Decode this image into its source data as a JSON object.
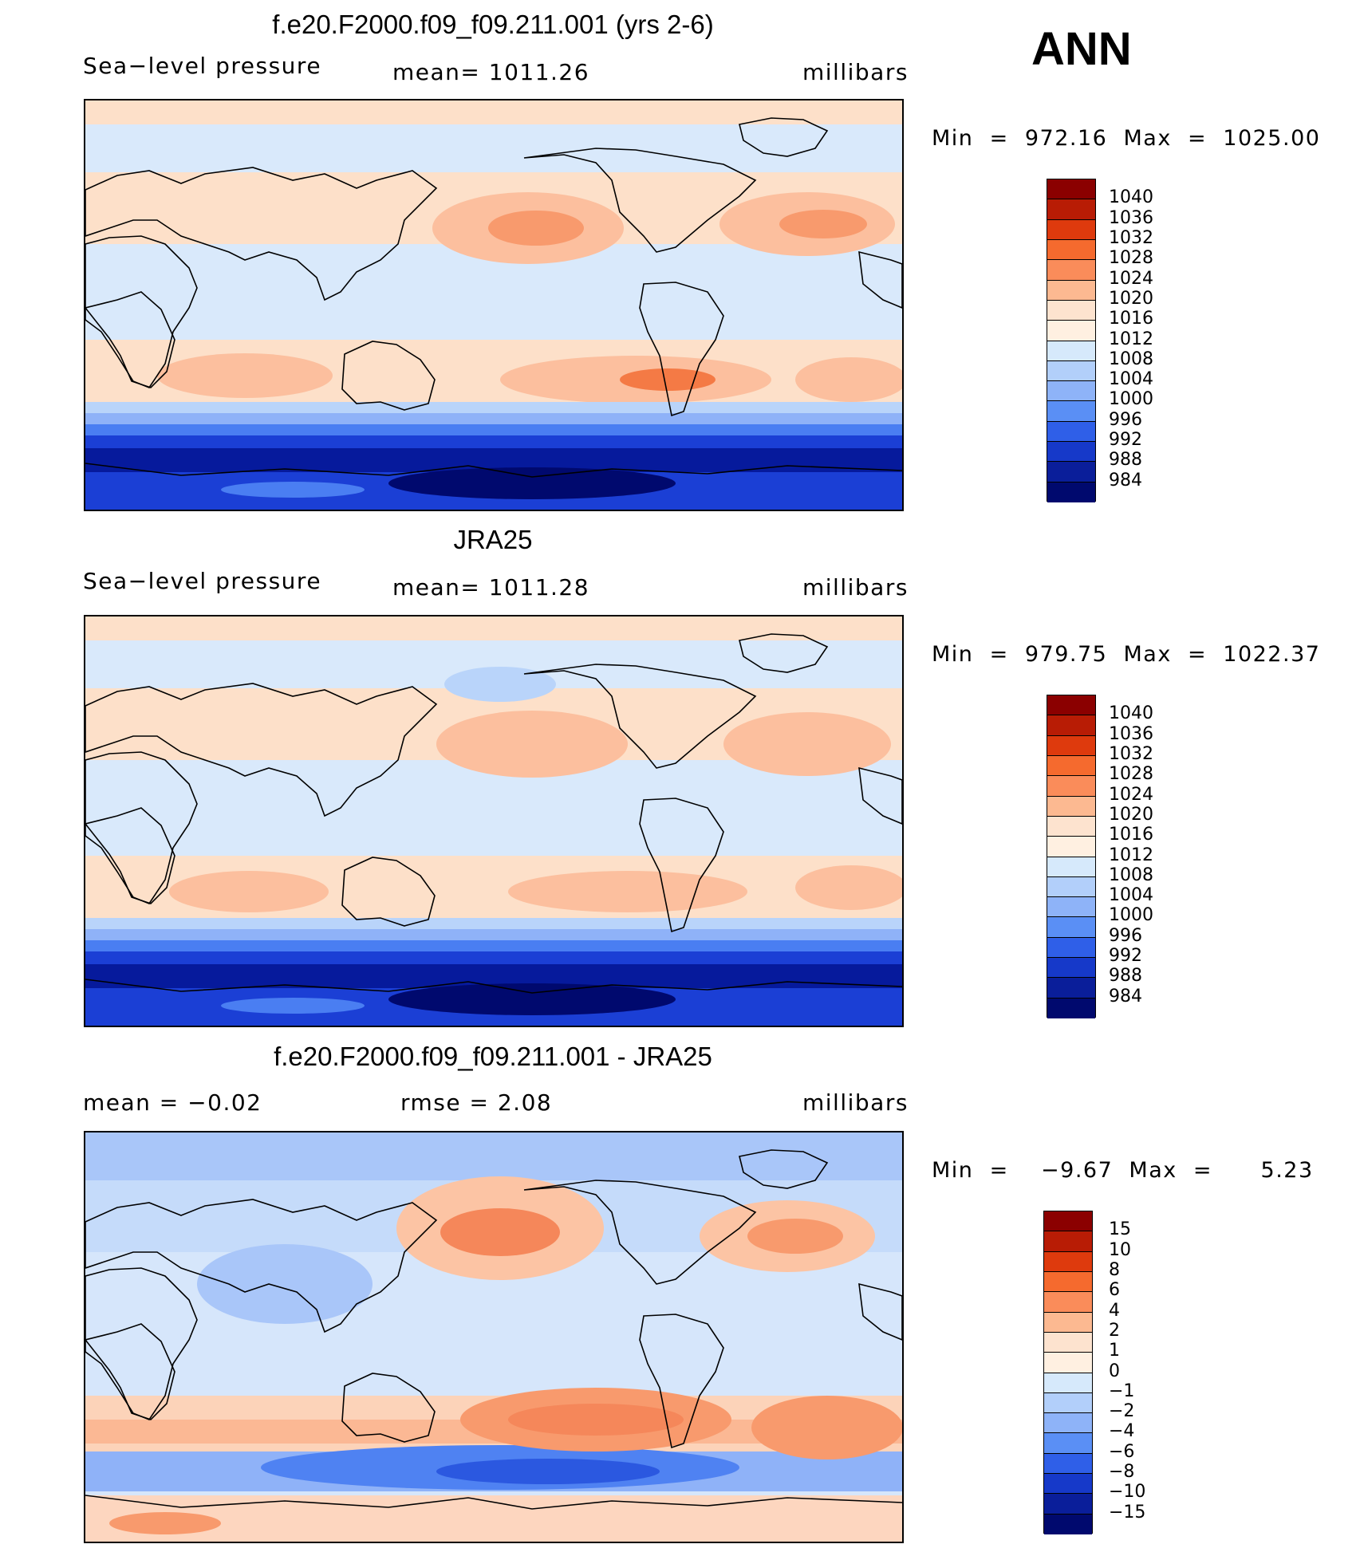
{
  "season": "ANN",
  "panels": [
    {
      "title": "f.e20.F2000.f09_f09.211.001 (yrs 2-6)",
      "left_label": "Sea−level pressure",
      "center_label": "mean=  1011.26",
      "right_label": "millibars",
      "minmax": "Min  =  972.16  Max  =  1025.00",
      "colorbar": {
        "labels": [
          "1040",
          "1036",
          "1032",
          "1028",
          "1024",
          "1020",
          "1016",
          "1012",
          "1008",
          "1004",
          "1000",
          "996",
          "992",
          "988",
          "984"
        ],
        "colors": [
          "#8b0000",
          "#b81c05",
          "#de3a0d",
          "#f56a2e",
          "#fa8c5a",
          "#fcb991",
          "#fde3cf",
          "#fff0e1",
          "#d6e9fb",
          "#b2cffa",
          "#8eb3f8",
          "#5a8ff5",
          "#2f5fe8",
          "#1639c9",
          "#0a1e9a",
          "#00096e"
        ]
      },
      "field_type": "slp_model",
      "map_colors": [
        "#fde0c9",
        "#fcbf9e",
        "#f89a6d",
        "#f47a45",
        "#d9e9fb",
        "#b9d4fa",
        "#8fb2f8",
        "#4a7ef2",
        "#1b3fd5",
        "#061a9c",
        "#00096e"
      ]
    },
    {
      "title": "JRA25",
      "left_label": "Sea−level pressure",
      "center_label": "mean=  1011.28",
      "right_label": "millibars",
      "minmax": "Min  =  979.75  Max  =  1022.37",
      "colorbar": {
        "labels": [
          "1040",
          "1036",
          "1032",
          "1028",
          "1024",
          "1020",
          "1016",
          "1012",
          "1008",
          "1004",
          "1000",
          "996",
          "992",
          "988",
          "984"
        ],
        "colors": [
          "#8b0000",
          "#b81c05",
          "#de3a0d",
          "#f56a2e",
          "#fa8c5a",
          "#fcb991",
          "#fde3cf",
          "#fff0e1",
          "#d6e9fb",
          "#b2cffa",
          "#8eb3f8",
          "#5a8ff5",
          "#2f5fe8",
          "#1639c9",
          "#0a1e9a",
          "#00096e"
        ]
      },
      "field_type": "slp_obs",
      "map_colors": [
        "#fde0c9",
        "#fcbf9e",
        "#f89a6d",
        "#f47a45",
        "#d9e9fb",
        "#b9d4fa",
        "#8fb2f8",
        "#4a7ef2",
        "#1b3fd5",
        "#061a9c",
        "#00096e"
      ]
    },
    {
      "title": "f.e20.F2000.f09_f09.211.001 - JRA25",
      "left_label": "mean  =    −0.02",
      "center_label": "rmse  =     2.08",
      "right_label": "millibars",
      "minmax": "Min  =    −9.67  Max  =      5.23",
      "colorbar": {
        "labels": [
          "15",
          "10",
          "8",
          "6",
          "4",
          "2",
          "1",
          "0",
          "−1",
          "−2",
          "−4",
          "−6",
          "−8",
          "−10",
          "−15"
        ],
        "colors": [
          "#8b0000",
          "#b81c05",
          "#de3a0d",
          "#f56a2e",
          "#fa8c5a",
          "#fcb991",
          "#fde3cf",
          "#fff0e1",
          "#d6e9fb",
          "#b2cffa",
          "#8eb3f8",
          "#5a8ff5",
          "#2f5fe8",
          "#1639c9",
          "#0a1e9a",
          "#00096e"
        ]
      },
      "field_type": "diff",
      "map_colors": [
        "#fde8d8",
        "#fcc7aa",
        "#f89a6d",
        "#f47a45",
        "#dceafb",
        "#bcd5fa",
        "#9bbcf8",
        "#6a97f4",
        "#3a6ae8",
        "#1d45cf",
        "#fcb38e"
      ]
    }
  ]
}
